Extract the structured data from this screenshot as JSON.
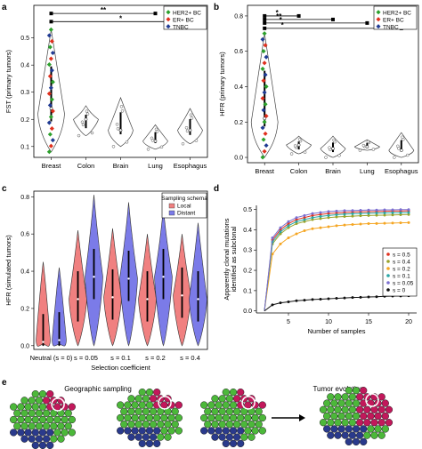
{
  "panel_labels": [
    "a",
    "b",
    "c",
    "d",
    "e"
  ],
  "legend_ab": [
    {
      "label": "HER2+ BC",
      "color": "#2ca02c"
    },
    {
      "label": "ER+ BC",
      "color": "#e0301e"
    },
    {
      "label": "TNBC",
      "color": "#1f3a93"
    }
  ],
  "panel_c_legend": {
    "title": "Sampling schema",
    "items": [
      {
        "label": "Local",
        "color": "#f08080"
      },
      {
        "label": "Distant",
        "color": "#7b7be8"
      }
    ]
  },
  "panel_e": {
    "title_left": "Geographic sampling",
    "title_right": "Tumor evolution"
  },
  "chart_data": [
    {
      "panel": "a",
      "type": "violin",
      "ylabel": "FST (primary tumors)",
      "categories": [
        "Breast",
        "Colon",
        "Brain",
        "Lung",
        "Esophagus"
      ],
      "yticks": [
        0.1,
        0.2,
        0.3,
        0.4,
        0.5
      ],
      "ylim": [
        0.06,
        0.62
      ],
      "medians": [
        0.24,
        0.2,
        0.16,
        0.12,
        0.16
      ],
      "ranges": [
        [
          0.08,
          0.53
        ],
        [
          0.14,
          0.25
        ],
        [
          0.1,
          0.28
        ],
        [
          0.09,
          0.18
        ],
        [
          0.11,
          0.24
        ]
      ],
      "significance": [
        {
          "from": "Breast",
          "to": "Lung",
          "label": "**",
          "y": 0.59
        },
        {
          "from": "Breast",
          "to": "Esophagus",
          "label": "*",
          "y": 0.56
        }
      ]
    },
    {
      "panel": "b",
      "type": "violin",
      "ylabel": "HFR (primary tumors)",
      "categories": [
        "Breast",
        "Colon",
        "Brain",
        "Lung",
        "Esophagus"
      ],
      "yticks": [
        0.0,
        0.2,
        0.4,
        0.6,
        0.8
      ],
      "ylim": [
        -0.03,
        0.86
      ],
      "medians": [
        0.22,
        0.07,
        0.05,
        0.06,
        0.04
      ],
      "ranges": [
        [
          0.0,
          0.7
        ],
        [
          0.02,
          0.12
        ],
        [
          0.0,
          0.12
        ],
        [
          0.04,
          0.1
        ],
        [
          0.0,
          0.14
        ]
      ],
      "significance": [
        {
          "from": "Breast",
          "to": "Colon",
          "label": "*",
          "y": 0.8
        },
        {
          "from": "Breast",
          "to": "Brain",
          "label": "**",
          "y": 0.78
        },
        {
          "from": "Breast",
          "to": "Lung",
          "label": "*",
          "y": 0.76
        },
        {
          "from": "Breast",
          "to": "Esophagus",
          "label": "*",
          "y": 0.73
        }
      ]
    },
    {
      "panel": "c",
      "type": "violin",
      "ylabel": "HFR (simulated tumors)",
      "xlabel": "Selection coefficient",
      "categories": [
        "Neutral (s = 0)",
        "s = 0.05",
        "s = 0.1",
        "s = 0.2",
        "s = 0.4"
      ],
      "yticks": [
        0.0,
        0.2,
        0.4,
        0.6,
        0.8
      ],
      "ylim": [
        -0.02,
        0.83
      ],
      "series": [
        {
          "name": "Local",
          "medians": [
            0.02,
            0.25,
            0.26,
            0.25,
            0.27
          ],
          "max": [
            0.45,
            0.62,
            0.63,
            0.6,
            0.6
          ]
        },
        {
          "name": "Distant",
          "medians": [
            0.03,
            0.37,
            0.36,
            0.37,
            0.25
          ],
          "max": [
            0.42,
            0.81,
            0.77,
            0.74,
            0.66
          ]
        }
      ]
    },
    {
      "panel": "d",
      "type": "line",
      "ylabel": "Apparently clonal mutations identified as subclonal",
      "xlabel": "Number of samples",
      "xticks": [
        5,
        10,
        15,
        20
      ],
      "yticks": [
        0.0,
        0.1,
        0.2,
        0.3,
        0.4,
        0.5
      ],
      "xlim": [
        1,
        21
      ],
      "ylim": [
        -0.01,
        0.52
      ],
      "x": [
        2,
        3,
        4,
        5,
        6,
        7,
        8,
        9,
        10,
        11,
        12,
        13,
        14,
        15,
        16,
        17,
        18,
        19,
        20
      ],
      "series": [
        {
          "name": "s = 0.5",
          "color": "#e0301e",
          "values": [
            0.0,
            0.35,
            0.4,
            0.43,
            0.45,
            0.46,
            0.47,
            0.475,
            0.48,
            0.482,
            0.485,
            0.487,
            0.488,
            0.489,
            0.49,
            0.491,
            0.492,
            0.492,
            0.493
          ]
        },
        {
          "name": "s = 0.4",
          "color": "#9aa32b",
          "values": [
            0.0,
            0.33,
            0.38,
            0.41,
            0.43,
            0.44,
            0.45,
            0.455,
            0.46,
            0.463,
            0.465,
            0.467,
            0.469,
            0.47,
            0.471,
            0.472,
            0.473,
            0.474,
            0.475
          ]
        },
        {
          "name": "s = 0.2",
          "color": "#f5a623",
          "values": [
            0.0,
            0.28,
            0.33,
            0.36,
            0.38,
            0.395,
            0.405,
            0.41,
            0.415,
            0.42,
            0.423,
            0.426,
            0.428,
            0.43,
            0.431,
            0.432,
            0.433,
            0.434,
            0.435
          ]
        },
        {
          "name": "s = 0.1",
          "color": "#2aa6a6",
          "values": [
            0.0,
            0.34,
            0.39,
            0.42,
            0.44,
            0.45,
            0.46,
            0.466,
            0.47,
            0.474,
            0.477,
            0.479,
            0.48,
            0.481,
            0.482,
            0.483,
            0.484,
            0.484,
            0.485
          ]
        },
        {
          "name": "s = 0.05",
          "color": "#7b6fd0",
          "values": [
            0.0,
            0.36,
            0.41,
            0.44,
            0.46,
            0.47,
            0.48,
            0.485,
            0.49,
            0.492,
            0.494,
            0.495,
            0.496,
            0.497,
            0.497,
            0.498,
            0.498,
            0.499,
            0.499
          ]
        },
        {
          "name": "s = 0",
          "color": "#111111",
          "values": [
            0.0,
            0.03,
            0.04,
            0.045,
            0.05,
            0.053,
            0.056,
            0.058,
            0.06,
            0.062,
            0.064,
            0.066,
            0.067,
            0.069,
            0.07,
            0.072,
            0.073,
            0.074,
            0.075
          ]
        }
      ]
    }
  ]
}
